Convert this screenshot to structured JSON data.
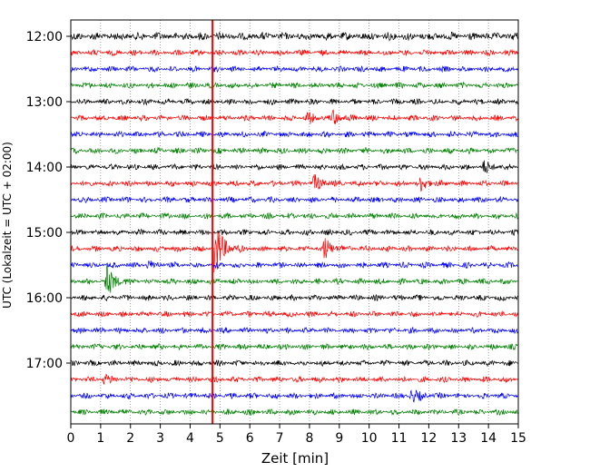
{
  "chart_data": {
    "type": "helicorder",
    "xlabel": "Zeit  [min]",
    "ylabel": "UTC (Lokalzeit = UTC + 02:00)",
    "xlim": [
      0,
      15
    ],
    "x_ticks": [
      "0",
      "1",
      "2",
      "3",
      "4",
      "5",
      "6",
      "7",
      "8",
      "9",
      "10",
      "11",
      "12",
      "13",
      "14",
      "15"
    ],
    "y_ticks": [
      "12:00",
      "13:00",
      "14:00",
      "15:00",
      "16:00",
      "17:00"
    ],
    "grid_x": true,
    "trace_colors": [
      "#000000",
      "#ff0000",
      "#0000ff",
      "#008000"
    ],
    "traces_per_hour": 4,
    "trace_count": 24,
    "marker": {
      "x": 4.75,
      "color": "#ff0000"
    },
    "events": [
      {
        "trace": 13,
        "x": 4.85,
        "amplitude": 1.6
      },
      {
        "trace": 13,
        "x": 8.5,
        "amplitude": 0.6
      },
      {
        "trace": 15,
        "x": 1.2,
        "amplitude": 0.9
      },
      {
        "trace": 5,
        "x": 8.8,
        "amplitude": 0.4
      },
      {
        "trace": 5,
        "x": 7.9,
        "amplitude": 0.3
      },
      {
        "trace": 9,
        "x": 8.15,
        "amplitude": 0.45
      },
      {
        "trace": 9,
        "x": 11.75,
        "amplitude": 0.35
      },
      {
        "trace": 22,
        "x": 11.4,
        "amplitude": 0.4
      },
      {
        "trace": 8,
        "x": 13.85,
        "amplitude": 0.3
      },
      {
        "trace": 14,
        "x": 2.6,
        "amplitude": 0.2
      },
      {
        "trace": 14,
        "x": 15.0,
        "amplitude": 0.25
      },
      {
        "trace": 21,
        "x": 1.1,
        "amplitude": 0.25
      }
    ]
  }
}
